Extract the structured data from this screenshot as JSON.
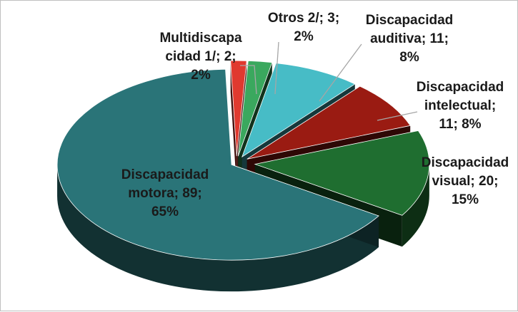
{
  "chart_data": {
    "type": "pie",
    "style": "3d-exploded",
    "title": "",
    "slices": [
      {
        "name": "Multidiscapacidad 1/",
        "value": 2,
        "percent": "2%",
        "color": "#e0392f",
        "label_lines": [
          "Multidiscapa",
          "cidad 1/; 2;",
          "2%"
        ]
      },
      {
        "name": "Otros 2/",
        "value": 3,
        "percent": "2%",
        "color": "#3aa85e",
        "label_lines": [
          "Otros 2/; 3;",
          "2%"
        ]
      },
      {
        "name": "Discapacidad auditiva",
        "value": 11,
        "percent": "8%",
        "color": "#47bcc6",
        "label_lines": [
          "Discapacidad",
          "auditiva; 11;",
          "8%"
        ]
      },
      {
        "name": "Discapacidad intelectual",
        "value": 11,
        "percent": "8%",
        "color": "#9a1b12",
        "label_lines": [
          "Discapacidad",
          "intelectual;",
          "11; 8%"
        ]
      },
      {
        "name": "Discapacidad visual",
        "value": 20,
        "percent": "15%",
        "color": "#1f6e30",
        "label_lines": [
          "Discapacidad",
          "visual; 20;",
          "15%"
        ]
      },
      {
        "name": "Discapacidad motora",
        "value": 89,
        "percent": "65%",
        "color": "#2a7478",
        "label_lines": [
          "Discapacidad",
          "motora; 89;",
          "65%"
        ]
      }
    ]
  }
}
